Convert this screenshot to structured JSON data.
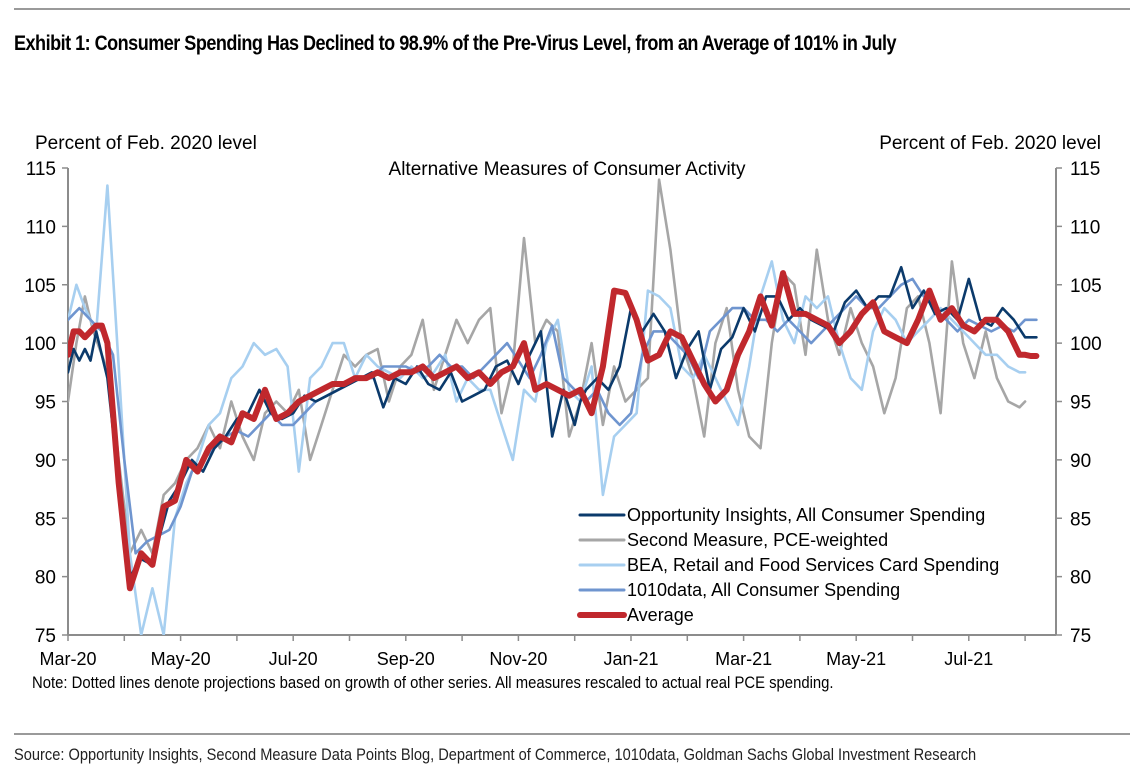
{
  "header": {
    "title": "Exhibit 1: Consumer Spending Has Declined to 98.9% of the Pre-Virus Level, from an Average of 101% in July"
  },
  "footer": {
    "note": "Note: Dotted lines denote projections based on growth of other series. All measures rescaled to actual real PCE spending.",
    "source": "Source: Opportunity Insights, Second Measure Data Points Blog, Department of Commerce, 1010data, Goldman Sachs Global Investment Research"
  },
  "chart_data": {
    "type": "line",
    "title": "Alternative Measures of Consumer Activity",
    "ylabel_left": "Percent of Feb. 2020 level",
    "ylabel_right": "Percent of Feb. 2020 level",
    "xlabel": "",
    "ylim": [
      75,
      115
    ],
    "yticks": [
      75,
      80,
      85,
      90,
      95,
      100,
      105,
      110,
      115
    ],
    "x_unit": "months since Mar-20",
    "xlim": [
      0,
      17.7
    ],
    "xtick_labels": [
      "Mar-20",
      "May-20",
      "Jul-20",
      "Sep-20",
      "Nov-20",
      "Jan-21",
      "Mar-21",
      "May-21",
      "Jul-21"
    ],
    "xtick_positions": [
      0,
      2,
      4,
      6,
      8,
      10,
      12,
      14,
      16
    ],
    "grid": false,
    "legend_position": "bottom-right",
    "series": [
      {
        "name": "Opportunity Insights, All Consumer Spending",
        "color": "#0b3a6b",
        "x": [
          0,
          0.1,
          0.2,
          0.3,
          0.4,
          0.5,
          0.6,
          0.7,
          0.9,
          1.1,
          1.3,
          1.5,
          1.6,
          1.8,
          2.0,
          2.2,
          2.4,
          2.6,
          2.8,
          3.0,
          3.2,
          3.4,
          3.6,
          3.8,
          4.0,
          4.2,
          4.4,
          4.6,
          4.8,
          5.0,
          5.2,
          5.4,
          5.6,
          5.8,
          6.0,
          6.2,
          6.4,
          6.6,
          6.8,
          7.0,
          7.2,
          7.4,
          7.6,
          7.8,
          8.0,
          8.2,
          8.4,
          8.6,
          8.8,
          9.0,
          9.1,
          9.2,
          9.4,
          9.6,
          9.8,
          10.0,
          10.2,
          10.4,
          10.6,
          10.8,
          11.0,
          11.2,
          11.4,
          11.6,
          11.8,
          12.0,
          12.2,
          12.4,
          12.6,
          12.8,
          13.0,
          13.2,
          13.4,
          13.6,
          13.8,
          14.0,
          14.2,
          14.4,
          14.6,
          14.8,
          15.0,
          15.2,
          15.4,
          15.6,
          15.8,
          16.0,
          16.2,
          16.4,
          16.6,
          16.8,
          17.0,
          17.2
        ],
        "values": [
          97.5,
          99.5,
          98.5,
          99.5,
          98.5,
          101,
          99,
          97,
          88,
          80,
          81.5,
          81,
          83,
          86.5,
          88,
          90,
          89,
          91,
          92,
          93.5,
          94,
          96,
          94,
          93.5,
          94,
          95.5,
          95,
          95.5,
          96,
          96.5,
          97,
          97.5,
          94.5,
          97,
          96.5,
          98,
          96.5,
          96,
          97.5,
          95,
          95.5,
          96,
          98,
          98.5,
          96.5,
          99,
          101,
          92,
          96,
          93,
          95,
          96,
          97,
          96,
          98,
          103,
          101,
          102.5,
          101,
          97,
          99.5,
          101,
          96,
          99.5,
          100.5,
          103,
          101,
          104,
          104,
          102,
          103,
          102,
          101.5,
          101,
          103.5,
          104.5,
          103,
          104,
          104,
          106.5,
          103,
          104.5,
          102.5,
          103,
          102,
          105.5,
          102,
          101.5,
          103,
          102,
          100.5,
          100.5
        ]
      },
      {
        "name": "Second Measure, PCE-weighted",
        "color": "#a6a6a6",
        "x": [
          0,
          0.15,
          0.3,
          0.45,
          0.6,
          0.75,
          0.9,
          1.1,
          1.3,
          1.5,
          1.7,
          1.9,
          2.1,
          2.3,
          2.5,
          2.7,
          2.9,
          3.1,
          3.3,
          3.5,
          3.7,
          3.9,
          4.1,
          4.3,
          4.5,
          4.7,
          4.9,
          5.1,
          5.3,
          5.5,
          5.7,
          5.9,
          6.1,
          6.3,
          6.5,
          6.7,
          6.9,
          7.1,
          7.3,
          7.5,
          7.7,
          7.9,
          8.1,
          8.3,
          8.5,
          8.7,
          8.9,
          9.1,
          9.3,
          9.5,
          9.7,
          9.9,
          10.1,
          10.3,
          10.5,
          10.7,
          10.9,
          11.1,
          11.3,
          11.5,
          11.7,
          11.9,
          12.1,
          12.3,
          12.5,
          12.7,
          12.9,
          13.1,
          13.3,
          13.5,
          13.7,
          13.9,
          14.1,
          14.3,
          14.5,
          14.7,
          14.9,
          15.1,
          15.3,
          15.5,
          15.7,
          15.9,
          16.1,
          16.3,
          16.5,
          16.7,
          16.9,
          17.0
        ],
        "values": [
          95,
          100,
          104,
          101,
          99,
          97,
          90,
          82,
          84,
          82,
          87,
          88,
          90,
          91,
          93,
          91,
          95,
          92,
          90,
          94,
          95,
          94,
          96,
          90,
          93,
          96,
          99,
          98,
          99,
          99.5,
          95,
          98,
          99,
          102,
          96,
          99,
          102,
          100,
          102,
          103,
          94,
          98,
          109,
          100,
          102,
          101,
          92,
          95,
          100,
          93,
          98,
          95,
          96,
          97,
          114,
          108,
          100,
          97,
          92,
          100,
          103,
          96,
          92,
          91,
          100,
          106,
          105,
          99,
          108,
          102,
          99,
          103,
          100,
          98,
          94,
          97,
          103,
          104,
          100,
          94,
          107,
          100,
          97,
          101,
          97,
          95,
          94.5,
          95
        ]
      },
      {
        "name": "BEA, Retail and Food Services Card Spending",
        "color": "#a7cff0",
        "x": [
          0,
          0.15,
          0.3,
          0.5,
          0.7,
          0.9,
          1.1,
          1.3,
          1.5,
          1.7,
          1.9,
          2.1,
          2.3,
          2.5,
          2.7,
          2.9,
          3.1,
          3.3,
          3.5,
          3.7,
          3.9,
          4.1,
          4.3,
          4.5,
          4.7,
          4.9,
          5.1,
          5.3,
          5.5,
          5.7,
          5.9,
          6.1,
          6.3,
          6.5,
          6.7,
          6.9,
          7.1,
          7.3,
          7.5,
          7.7,
          7.9,
          8.1,
          8.3,
          8.5,
          8.7,
          8.9,
          9.1,
          9.3,
          9.5,
          9.7,
          9.9,
          10.1,
          10.3,
          10.5,
          10.7,
          10.9,
          11.1,
          11.3,
          11.5,
          11.7,
          11.9,
          12.1,
          12.3,
          12.5,
          12.7,
          12.9,
          13.1,
          13.3,
          13.5,
          13.7,
          13.9,
          14.1,
          14.3,
          14.5,
          14.7,
          14.9,
          15.1,
          15.3,
          15.5,
          15.7,
          15.9,
          16.1,
          16.3,
          16.5,
          16.7,
          16.9,
          17.0
        ],
        "values": [
          102,
          105,
          103,
          101,
          113.5,
          98,
          82,
          75,
          79,
          75,
          85,
          88,
          90,
          93,
          94,
          97,
          98,
          100,
          99,
          99.5,
          98,
          89,
          97,
          98,
          100,
          100,
          97,
          99,
          98,
          97.5,
          97,
          98,
          97,
          97.5,
          99,
          95,
          97,
          96,
          96,
          93,
          90,
          96,
          95,
          100,
          102,
          96,
          95,
          98,
          87,
          92,
          93,
          94,
          104.5,
          104,
          103,
          98,
          97,
          99,
          97,
          95,
          93,
          98,
          104,
          107,
          102,
          100,
          104,
          103,
          104,
          100,
          97,
          96,
          101,
          103,
          102,
          100,
          101,
          102,
          103,
          102,
          101,
          100,
          99,
          99,
          98,
          97.5,
          97.5
        ]
      },
      {
        "name": "1010data, All Consumer Spending",
        "color": "#6f95cf",
        "x": [
          0,
          0.2,
          0.4,
          0.6,
          0.8,
          1.0,
          1.2,
          1.4,
          1.6,
          1.8,
          2.0,
          2.2,
          2.4,
          2.6,
          2.8,
          3.0,
          3.2,
          3.4,
          3.6,
          3.8,
          4.0,
          4.2,
          4.4,
          4.6,
          4.8,
          5.0,
          5.2,
          5.4,
          5.6,
          5.8,
          6.0,
          6.2,
          6.4,
          6.6,
          6.8,
          7.0,
          7.2,
          7.4,
          7.6,
          7.8,
          8.0,
          8.2,
          8.4,
          8.6,
          8.8,
          9.0,
          9.2,
          9.4,
          9.6,
          9.8,
          10.0,
          10.2,
          10.4,
          10.6,
          10.8,
          11.0,
          11.2,
          11.4,
          11.6,
          11.8,
          12.0,
          12.2,
          12.4,
          12.6,
          12.8,
          13.0,
          13.2,
          13.4,
          13.6,
          13.8,
          14.0,
          14.2,
          14.4,
          14.6,
          14.8,
          15.0,
          15.2,
          15.4,
          15.6,
          15.8,
          16.0,
          16.2,
          16.4,
          16.6,
          16.8,
          17.0,
          17.2
        ],
        "values": [
          102,
          103,
          102,
          101,
          99,
          90,
          82,
          83,
          83.5,
          84,
          86,
          89,
          90,
          91,
          92,
          92.5,
          92,
          93,
          94,
          93,
          93,
          94,
          95,
          95.5,
          96,
          96.5,
          97,
          97,
          98,
          98,
          98,
          97.5,
          98,
          99,
          98,
          98,
          97,
          98,
          99,
          100,
          98.5,
          97,
          99,
          101.5,
          97,
          96,
          95,
          96,
          94,
          93,
          94,
          99,
          101,
          101,
          100,
          99,
          97,
          101,
          102,
          103,
          103,
          102,
          102,
          101,
          102,
          101,
          100,
          101,
          102,
          103,
          104,
          103,
          103,
          104,
          105,
          105.5,
          104,
          103,
          102,
          101,
          102,
          101.5,
          101,
          101.5,
          101,
          102,
          102
        ]
      },
      {
        "name": "Average",
        "color": "#c0282d",
        "x": [
          0,
          0.1,
          0.2,
          0.3,
          0.4,
          0.5,
          0.6,
          0.7,
          0.9,
          1.1,
          1.3,
          1.5,
          1.7,
          1.9,
          2.1,
          2.3,
          2.5,
          2.7,
          2.9,
          3.1,
          3.3,
          3.5,
          3.7,
          3.9,
          4.1,
          4.3,
          4.5,
          4.7,
          4.9,
          5.1,
          5.3,
          5.5,
          5.7,
          5.9,
          6.1,
          6.3,
          6.5,
          6.7,
          6.9,
          7.1,
          7.3,
          7.5,
          7.7,
          7.9,
          8.1,
          8.3,
          8.5,
          8.7,
          8.9,
          9.1,
          9.3,
          9.5,
          9.7,
          9.9,
          10.1,
          10.3,
          10.5,
          10.7,
          10.9,
          11.1,
          11.3,
          11.5,
          11.7,
          11.9,
          12.1,
          12.3,
          12.5,
          12.7,
          12.9,
          13.1,
          13.3,
          13.5,
          13.7,
          13.9,
          14.1,
          14.3,
          14.5,
          14.7,
          14.9,
          15.1,
          15.3,
          15.5,
          15.7,
          15.9,
          16.1,
          16.3,
          16.5,
          16.7,
          16.9,
          17.0,
          17.1,
          17.2
        ],
        "values": [
          99,
          101,
          101,
          100.5,
          101,
          101.5,
          101.5,
          100,
          88,
          79,
          82,
          81,
          86,
          86.5,
          90,
          89,
          91,
          92,
          91.5,
          94,
          93.5,
          96,
          93.5,
          94,
          95,
          95.5,
          96,
          96.5,
          96.5,
          97,
          97,
          97.5,
          97,
          97.5,
          97.5,
          98,
          97,
          97.5,
          98,
          97,
          97.5,
          96.5,
          97.5,
          98,
          100,
          96,
          96.5,
          96,
          95.5,
          96,
          94,
          98,
          104.5,
          104.3,
          102,
          98.5,
          99,
          101,
          100.5,
          98.5,
          96.5,
          95,
          96,
          99,
          101,
          104,
          101.5,
          106,
          102.5,
          102.5,
          102,
          101.5,
          100,
          101,
          102.5,
          103.5,
          101,
          100.5,
          100,
          102,
          104.5,
          102,
          103,
          101.5,
          101,
          102,
          102,
          101,
          99,
          99,
          98.9,
          98.9
        ]
      }
    ]
  }
}
